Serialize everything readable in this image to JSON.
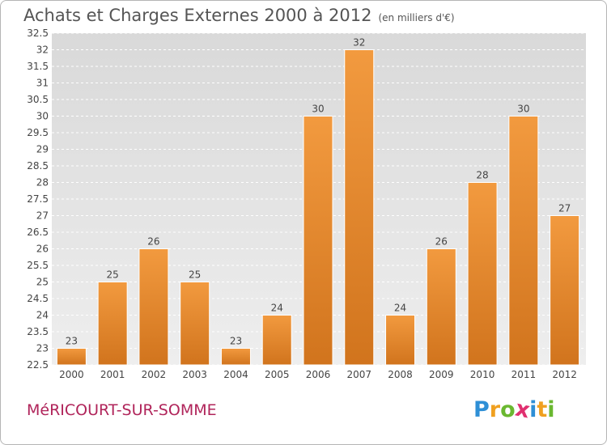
{
  "header": {
    "title": "Achats et Charges Externes 2000 à 2012",
    "unit": "(en milliers d'€)"
  },
  "footer": {
    "commune": "MéRICOURT-SUR-SOMME",
    "logo": "Proxiti",
    "logo_letters": [
      {
        "ch": "P",
        "color": "#2e8fd6"
      },
      {
        "ch": "r",
        "color": "#f0a020"
      },
      {
        "ch": "o",
        "color": "#6ab830"
      },
      {
        "ch": "x",
        "color": "#e03070"
      },
      {
        "ch": "i",
        "color": "#2e8fd6"
      },
      {
        "ch": "t",
        "color": "#f0a020"
      },
      {
        "ch": "i",
        "color": "#6ab830"
      }
    ]
  },
  "chart_data": {
    "type": "bar",
    "title": "Achats et Charges Externes 2000 à 2012",
    "subtitle": "(en milliers d'€)",
    "xlabel": "",
    "ylabel": "",
    "categories": [
      "2000",
      "2001",
      "2002",
      "2003",
      "2004",
      "2005",
      "2006",
      "2007",
      "2008",
      "2009",
      "2010",
      "2011",
      "2012"
    ],
    "values": [
      23,
      25,
      26,
      25,
      23,
      24,
      30,
      32,
      24,
      26,
      28,
      30,
      27
    ],
    "ylim": [
      22.5,
      32.5
    ],
    "yticks": [
      "22.5",
      "23",
      "23.5",
      "24",
      "24.5",
      "25",
      "25.5",
      "26",
      "26.5",
      "27",
      "27.5",
      "28",
      "28.5",
      "29",
      "29.5",
      "30",
      "30.5",
      "31",
      "31.5",
      "32",
      "32.5"
    ],
    "grid": true,
    "bar_color": "#f29a3f",
    "bar_color_dark": "#d1741d"
  }
}
